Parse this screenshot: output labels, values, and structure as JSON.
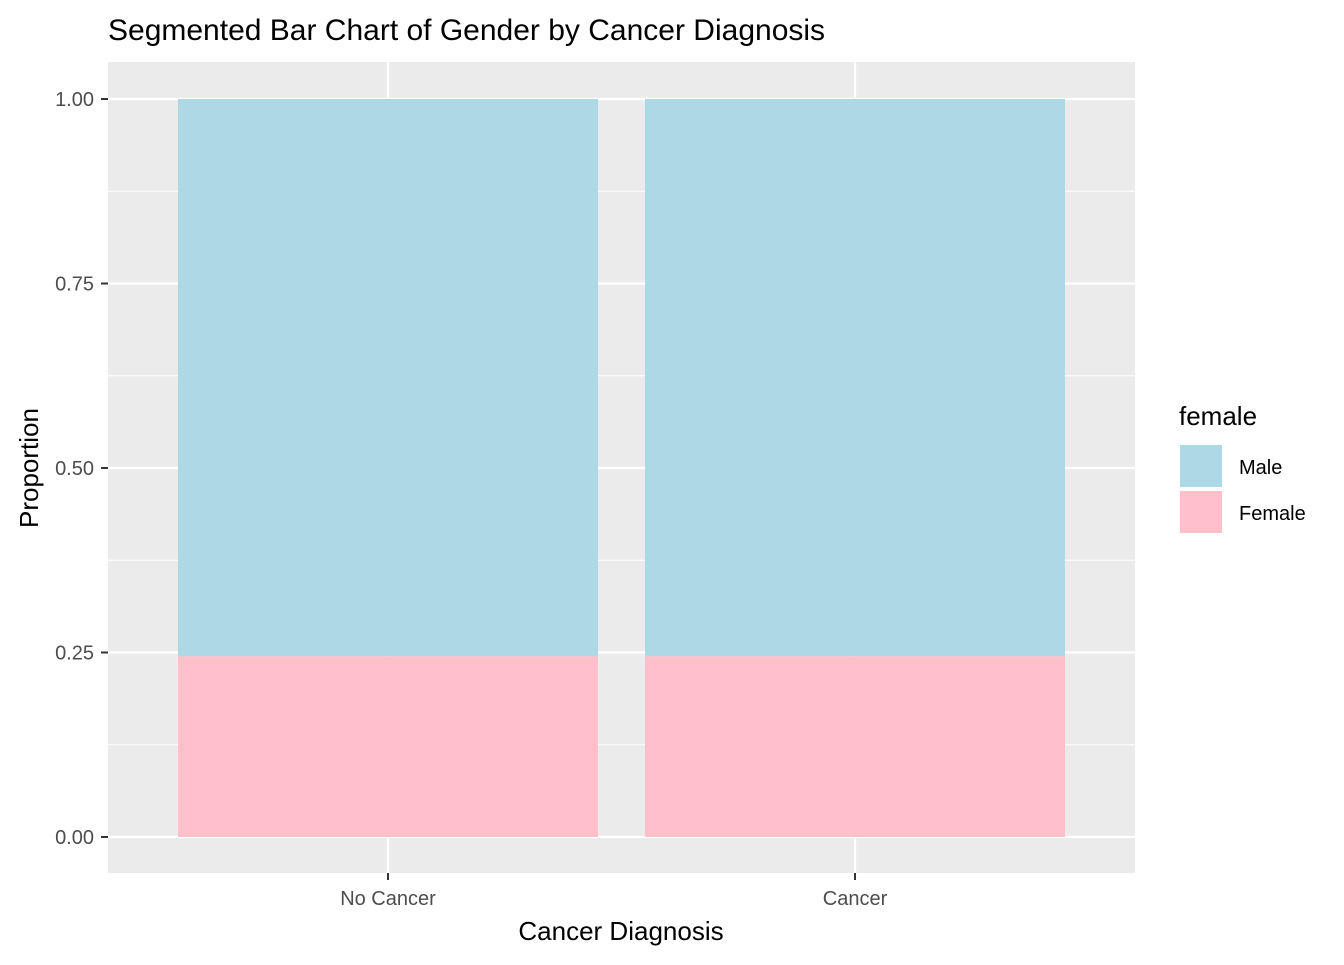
{
  "chart_data": {
    "type": "bar",
    "stacked": true,
    "title": "Segmented Bar Chart of Gender by Cancer Diagnosis",
    "xlabel": "Cancer Diagnosis",
    "ylabel": "Proportion",
    "categories": [
      "No Cancer",
      "Cancer"
    ],
    "series": [
      {
        "name": "Male",
        "values": [
          0.755,
          0.755
        ],
        "color": "#ADD8E6"
      },
      {
        "name": "Female",
        "values": [
          0.245,
          0.245
        ],
        "color": "#FFC0CB"
      }
    ],
    "ylim": [
      0,
      1
    ],
    "y_ticks": [
      "0.00",
      "0.25",
      "0.50",
      "0.75",
      "1.00"
    ],
    "legend": {
      "title": "female",
      "placement": "right"
    },
    "grid": true,
    "colors": {
      "panel_background": "#EBEBEB",
      "grid": "#FFFFFF",
      "axis_text": "#4D4D4D",
      "text": "#000000"
    }
  }
}
